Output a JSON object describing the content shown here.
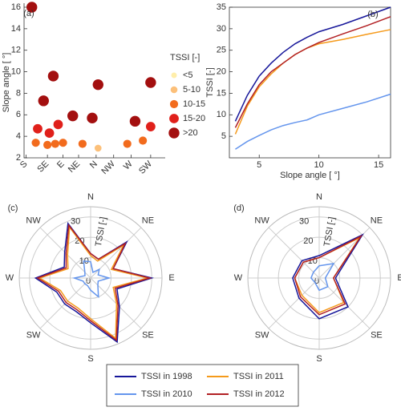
{
  "chart_data": [
    {
      "type": "scatter",
      "label": "(a)",
      "ylabel": "Slope angle [ °]",
      "legend_title": "TSSI [-]",
      "xlim": [
        0,
        7
      ],
      "ylim": [
        2,
        16
      ],
      "yticks": [
        2,
        4,
        6,
        8,
        10,
        12,
        14,
        16
      ],
      "xticks": [
        {
          "value": 0.1,
          "label": "S"
        },
        {
          "value": 1.2,
          "label": "SE"
        },
        {
          "value": 2.0,
          "label": "E"
        },
        {
          "value": 2.8,
          "label": "NE"
        },
        {
          "value": 3.7,
          "label": "N"
        },
        {
          "value": 4.6,
          "label": "NW"
        },
        {
          "value": 5.5,
          "label": "W"
        },
        {
          "value": 6.5,
          "label": "SW"
        }
      ],
      "series": [
        {
          "name": "<5",
          "color": "#ffeeaa",
          "x": [],
          "y": []
        },
        {
          "name": "5-10",
          "color": "#fcc07a",
          "x": [
            3.8
          ],
          "y": [
            2.9
          ]
        },
        {
          "name": "10-15",
          "color": "#f26b1d",
          "x": [
            0.6,
            1.2,
            1.6,
            2.0,
            3.0,
            5.3,
            6.1
          ],
          "y": [
            3.4,
            3.2,
            3.3,
            3.4,
            3.3,
            3.3,
            3.6
          ]
        },
        {
          "name": "15-20",
          "color": "#e0201b",
          "x": [
            0.7,
            1.3,
            1.75,
            6.5
          ],
          "y": [
            4.7,
            4.3,
            5.1,
            4.9
          ]
        },
        {
          "name": ">20",
          "color": "#a30f0f",
          "x": [
            0.4,
            1.0,
            1.5,
            2.5,
            3.5,
            3.8,
            5.7,
            6.5
          ],
          "y": [
            16,
            7.3,
            9.6,
            5.9,
            5.7,
            8.8,
            5.4,
            9.0
          ]
        }
      ]
    },
    {
      "type": "line",
      "label": "(b)",
      "xlabel": "Slope angle [ °]",
      "ylabel": "TSSI [-]",
      "xlim": [
        2.5,
        16
      ],
      "ylim": [
        0,
        35
      ],
      "xticks": [
        5,
        10,
        15
      ],
      "yticks": [
        5,
        10,
        15,
        20,
        25,
        30,
        35
      ],
      "x": [
        3,
        4,
        5,
        6,
        7,
        8,
        9,
        10,
        12,
        14,
        16
      ],
      "series": [
        {
          "name": "TSSI in 1998",
          "color": "#17179a",
          "values": [
            8.5,
            14.5,
            19,
            22,
            24.5,
            26.5,
            28,
            29.3,
            31,
            33,
            35
          ]
        },
        {
          "name": "TSSI in 2011",
          "color": "#f59a1b",
          "values": [
            5.5,
            12,
            16.5,
            19.5,
            22,
            24,
            25.5,
            26.5,
            27.5,
            28.7,
            29.8
          ]
        },
        {
          "name": "TSSI in 2010",
          "color": "#6495ed",
          "values": [
            2,
            3.8,
            5.2,
            6.5,
            7.5,
            8.2,
            8.8,
            10,
            11.5,
            13,
            14.8
          ]
        },
        {
          "name": "TSSI in 2012",
          "color": "#b22024",
          "values": [
            7,
            12.5,
            17,
            20,
            22,
            24,
            25.5,
            26.8,
            28.8,
            30.7,
            32.8
          ]
        }
      ]
    },
    {
      "type": "polar",
      "label": "(c)",
      "rlabel": "TSSI [-]",
      "rlim": [
        0,
        35
      ],
      "rticks": [
        0,
        10,
        20,
        30
      ],
      "categories": [
        "N",
        null,
        "NE",
        null,
        "E",
        null,
        "SE",
        null,
        "S",
        null,
        "SW",
        null,
        "W",
        null,
        "NW",
        null
      ],
      "series": [
        {
          "color": "#17179a",
          "values": [
            12,
            10,
            25,
            12,
            30,
            14,
            20,
            34,
            22,
            18,
            18,
            18,
            27,
            14,
            18,
            29
          ]
        },
        {
          "color": "#6495ed",
          "values": [
            8,
            3,
            6,
            4,
            9,
            4,
            5,
            10,
            6,
            4,
            4,
            4,
            8,
            3,
            4,
            9
          ]
        },
        {
          "color": "#f59a1b",
          "values": [
            11,
            9,
            23,
            11,
            28,
            12,
            18,
            32,
            20,
            16,
            16,
            16,
            25,
            12,
            16,
            27
          ]
        },
        {
          "color": "#b22024",
          "values": [
            12,
            10,
            24,
            12,
            29,
            13,
            19,
            33,
            21,
            17,
            17,
            17,
            26,
            13,
            17,
            28
          ]
        }
      ]
    },
    {
      "type": "polar",
      "label": "(d)",
      "rlabel": "TSSI [-]",
      "rlim": [
        0,
        35
      ],
      "rticks": [
        0,
        10,
        20,
        30
      ],
      "categories": [
        "N",
        "NE",
        "E",
        "SE",
        "S",
        "SW",
        "W",
        "NW"
      ],
      "series": [
        {
          "color": "#17179a",
          "values": [
            11,
            30,
            8,
            20,
            20,
            14,
            13,
            12
          ]
        },
        {
          "color": "#6495ed",
          "values": [
            6,
            10,
            3,
            6,
            6,
            3,
            4,
            4
          ]
        },
        {
          "color": "#f59a1b",
          "values": [
            10,
            28,
            7,
            17,
            17,
            12,
            12,
            11
          ]
        },
        {
          "color": "#b22024",
          "values": [
            10,
            29,
            7,
            18,
            18,
            13,
            12,
            11
          ]
        }
      ]
    }
  ]
}
